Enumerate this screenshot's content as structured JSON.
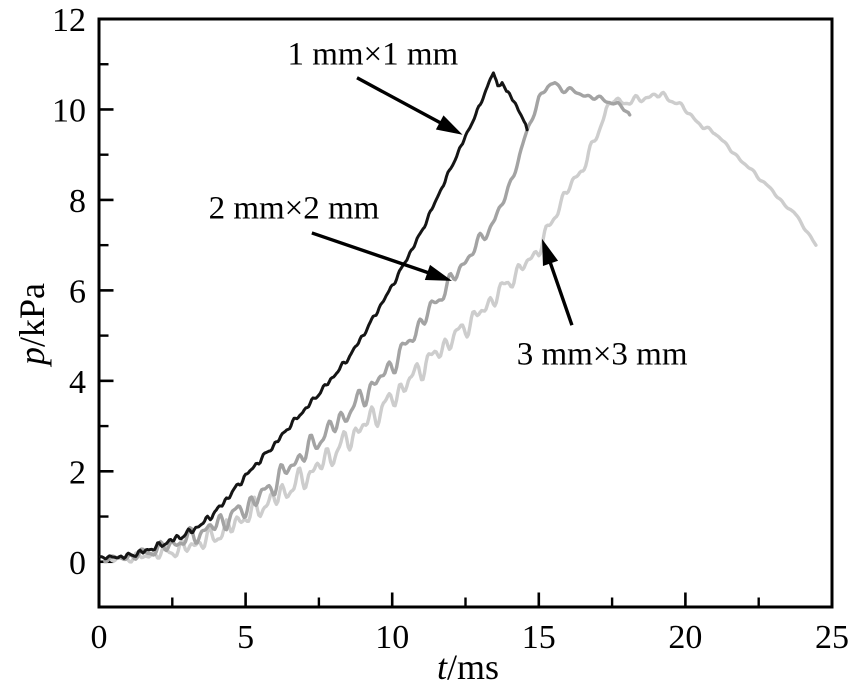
{
  "figure": {
    "background": "#ffffff",
    "frame_color": "#000000",
    "text_color": "#000000"
  },
  "chart_data": {
    "type": "line",
    "title": "",
    "xlabel": "t/ms",
    "ylabel": "p/kPa",
    "xlim": [
      0,
      25
    ],
    "ylim": [
      -1,
      12
    ],
    "xticks": [
      0,
      5,
      10,
      15,
      20,
      25
    ],
    "xminor_ticks": [
      2.5,
      7.5,
      12.5,
      17.5,
      22.5
    ],
    "yticks": [
      0,
      2,
      4,
      6,
      8,
      10,
      12
    ],
    "yminor_ticks": [
      1,
      3,
      5,
      7,
      9,
      11
    ],
    "grid": false,
    "legend_position": "none (arrow-annotated labels inside plot)",
    "series": [
      {
        "name": "1 mm×1 mm",
        "color": "#151515",
        "width": 3,
        "points": [
          [
            0.05,
            0.1
          ],
          [
            0.6,
            0.1
          ],
          [
            1,
            0.13
          ],
          [
            1.5,
            0.22
          ],
          [
            2,
            0.34
          ],
          [
            2.5,
            0.48
          ],
          [
            3,
            0.62
          ],
          [
            3.5,
            0.83
          ],
          [
            4,
            1.12
          ],
          [
            4.5,
            1.5
          ],
          [
            5,
            1.9
          ],
          [
            5.5,
            2.25
          ],
          [
            6,
            2.6
          ],
          [
            6.5,
            3.0
          ],
          [
            7,
            3.35
          ],
          [
            7.5,
            3.72
          ],
          [
            8,
            4.1
          ],
          [
            8.5,
            4.5
          ],
          [
            9,
            5.0
          ],
          [
            9.5,
            5.55
          ],
          [
            10,
            6.1
          ],
          [
            10.5,
            6.7
          ],
          [
            11,
            7.3
          ],
          [
            11.5,
            8.0
          ],
          [
            12,
            8.7
          ],
          [
            12.5,
            9.4
          ],
          [
            13,
            10.1
          ],
          [
            13.3,
            10.6
          ],
          [
            13.45,
            10.82
          ],
          [
            13.6,
            10.5
          ],
          [
            13.75,
            10.62
          ],
          [
            13.9,
            10.38
          ],
          [
            14.05,
            10.3
          ],
          [
            14.2,
            10.12
          ],
          [
            14.35,
            9.95
          ],
          [
            14.5,
            9.72
          ],
          [
            14.6,
            9.55
          ]
        ],
        "noise": {
          "amplitude": 0.075,
          "periods": [
            0.33,
            0.52,
            0.21
          ],
          "phases": [
            0.7,
            2.3,
            4.1
          ],
          "envelope": [
            [
              0,
              0.3
            ],
            [
              1,
              0.9
            ],
            [
              3,
              1.1
            ],
            [
              5,
              0.9
            ],
            [
              9,
              0.75
            ],
            [
              12.5,
              0.6
            ],
            [
              13.5,
              0.5
            ],
            [
              14.6,
              0.9
            ]
          ]
        }
      },
      {
        "name": "2 mm×2 mm",
        "color": "#a3a3a3",
        "width": 3.4,
        "points": [
          [
            0.2,
            0.06
          ],
          [
            1,
            0.1
          ],
          [
            1.5,
            0.18
          ],
          [
            2,
            0.28
          ],
          [
            2.5,
            0.38
          ],
          [
            3,
            0.5
          ],
          [
            3.5,
            0.65
          ],
          [
            4,
            0.82
          ],
          [
            4.5,
            1.0
          ],
          [
            5,
            1.2
          ],
          [
            5.5,
            1.45
          ],
          [
            6,
            1.75
          ],
          [
            6.5,
            2.1
          ],
          [
            7,
            2.4
          ],
          [
            7.5,
            2.7
          ],
          [
            8,
            3.0
          ],
          [
            8.5,
            3.3
          ],
          [
            9,
            3.65
          ],
          [
            9.5,
            4.0
          ],
          [
            10,
            4.35
          ],
          [
            10.5,
            4.8
          ],
          [
            11,
            5.3
          ],
          [
            11.5,
            5.75
          ],
          [
            12,
            6.2
          ],
          [
            12.5,
            6.65
          ],
          [
            13,
            7.1
          ],
          [
            13.5,
            7.55
          ],
          [
            14,
            8.3
          ],
          [
            14.5,
            9.3
          ],
          [
            15,
            10.25
          ],
          [
            15.3,
            10.5
          ],
          [
            15.55,
            10.58
          ],
          [
            15.8,
            10.45
          ],
          [
            16.2,
            10.4
          ],
          [
            16.6,
            10.3
          ],
          [
            17,
            10.25
          ],
          [
            17.4,
            10.18
          ],
          [
            17.7,
            10.1
          ],
          [
            17.95,
            10.0
          ],
          [
            18.1,
            9.88
          ]
        ],
        "noise": {
          "amplitude": 0.2,
          "periods": [
            0.52,
            0.34,
            0.82
          ],
          "phases": [
            1.9,
            0.4,
            3.3
          ],
          "envelope": [
            [
              0,
              0.2
            ],
            [
              1,
              0.5
            ],
            [
              2.5,
              0.9
            ],
            [
              4,
              1.2
            ],
            [
              6,
              1.3
            ],
            [
              9,
              1.3
            ],
            [
              11,
              1.1
            ],
            [
              12.5,
              0.9
            ],
            [
              13.8,
              0.6
            ],
            [
              14.8,
              0.4
            ],
            [
              15.5,
              0.35
            ],
            [
              16.5,
              0.3
            ],
            [
              18.1,
              0.3
            ]
          ]
        }
      },
      {
        "name": "3 mm×3 mm",
        "color": "#cdcdcd",
        "width": 3.4,
        "points": [
          [
            0.35,
            0.05
          ],
          [
            1,
            0.08
          ],
          [
            1.5,
            0.12
          ],
          [
            2,
            0.18
          ],
          [
            2.5,
            0.24
          ],
          [
            3,
            0.32
          ],
          [
            3.5,
            0.44
          ],
          [
            4,
            0.58
          ],
          [
            4.5,
            0.78
          ],
          [
            5,
            1.0
          ],
          [
            5.5,
            1.2
          ],
          [
            6,
            1.4
          ],
          [
            6.5,
            1.62
          ],
          [
            7,
            1.85
          ],
          [
            7.5,
            2.12
          ],
          [
            8,
            2.4
          ],
          [
            8.5,
            2.7
          ],
          [
            9,
            3.0
          ],
          [
            9.5,
            3.3
          ],
          [
            10,
            3.6
          ],
          [
            10.5,
            3.95
          ],
          [
            11,
            4.3
          ],
          [
            11.5,
            4.6
          ],
          [
            12,
            4.9
          ],
          [
            12.5,
            5.2
          ],
          [
            13,
            5.5
          ],
          [
            13.5,
            5.85
          ],
          [
            14,
            6.2
          ],
          [
            14.5,
            6.55
          ],
          [
            15,
            6.9
          ],
          [
            15.5,
            7.6
          ],
          [
            16,
            8.25
          ],
          [
            16.5,
            8.7
          ],
          [
            17,
            9.45
          ],
          [
            17.3,
            10.0
          ],
          [
            17.55,
            10.22
          ],
          [
            17.8,
            10.15
          ],
          [
            18.1,
            10.18
          ],
          [
            18.45,
            10.22
          ],
          [
            18.75,
            10.28
          ],
          [
            19,
            10.33
          ],
          [
            19.25,
            10.3
          ],
          [
            19.5,
            10.22
          ],
          [
            19.75,
            10.12
          ],
          [
            20,
            10.0
          ],
          [
            20.3,
            9.8
          ],
          [
            20.6,
            9.6
          ],
          [
            21,
            9.5
          ],
          [
            21.3,
            9.28
          ],
          [
            21.7,
            9.0
          ],
          [
            22.1,
            8.75
          ],
          [
            22.5,
            8.5
          ],
          [
            22.9,
            8.25
          ],
          [
            23.3,
            7.95
          ],
          [
            23.7,
            7.72
          ],
          [
            24,
            7.45
          ],
          [
            24.2,
            7.25
          ],
          [
            24.45,
            7.0
          ]
        ],
        "noise": {
          "amplitude": 0.22,
          "periods": [
            0.5,
            0.31,
            0.77
          ],
          "phases": [
            4.2,
            1.1,
            2.6
          ],
          "envelope": [
            [
              0,
              0.2
            ],
            [
              1,
              0.4
            ],
            [
              2.5,
              0.8
            ],
            [
              4,
              1.1
            ],
            [
              6,
              1.3
            ],
            [
              9,
              1.35
            ],
            [
              11.5,
              1.2
            ],
            [
              13.5,
              1.0
            ],
            [
              15,
              0.8
            ],
            [
              16.5,
              0.6
            ],
            [
              17.5,
              0.45
            ],
            [
              19,
              0.4
            ],
            [
              19.8,
              0.3
            ],
            [
              21,
              0.2
            ],
            [
              24.45,
              0.15
            ]
          ]
        }
      }
    ],
    "annotations": [
      {
        "label": "1 mm×1 mm",
        "text_at": [
          9.34,
          11.2
        ],
        "arrow_from": [
          8.8,
          10.7
        ],
        "arrow_to": [
          12.4,
          9.44
        ]
      },
      {
        "label": "2 mm×2 mm",
        "text_at": [
          6.65,
          7.8
        ],
        "arrow_from": [
          7.26,
          7.27
        ],
        "arrow_to": [
          12.04,
          6.21
        ]
      },
      {
        "label": "3 mm×3 mm",
        "text_at": [
          17.16,
          4.57
        ],
        "arrow_from": [
          16.13,
          5.23
        ],
        "arrow_to": [
          15.11,
          7.14
        ]
      }
    ]
  }
}
